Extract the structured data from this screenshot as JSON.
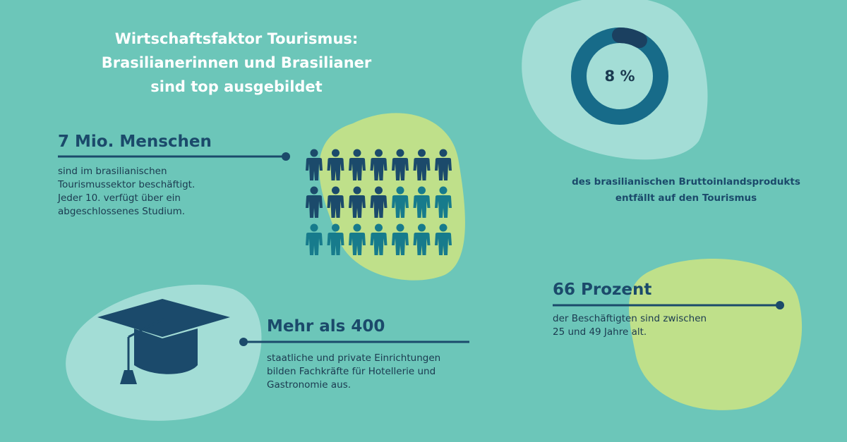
{
  "title": [
    "Wirtschaftsfaktor Tourismus:",
    "Brasilianerinnen und Brasilianer",
    "sind top ausgebildet"
  ],
  "donut": {
    "value": 8,
    "label": "8 %",
    "caption": [
      "des brasilianischen Bruttoinlandsprodukts",
      "entfällt auf den Tourismus"
    ]
  },
  "people": {
    "heading": "7 Mio. Menschen",
    "text": [
      "sind im brasilianischen",
      "Tourismussektor beschäftigt.",
      "Jeder 10. verfügt über ein",
      "abgeschlossenes Studium."
    ]
  },
  "institutions": {
    "heading": "Mehr als 400",
    "text": [
      "staatliche und private Einrichtungen",
      "bilden Fachkräfte für Hotellerie und",
      "Gastronomie aus."
    ]
  },
  "age": {
    "heading": "66 Prozent",
    "text": [
      "der Beschäftigten sind zwischen",
      "25 und 49 Jahre alt."
    ]
  }
}
